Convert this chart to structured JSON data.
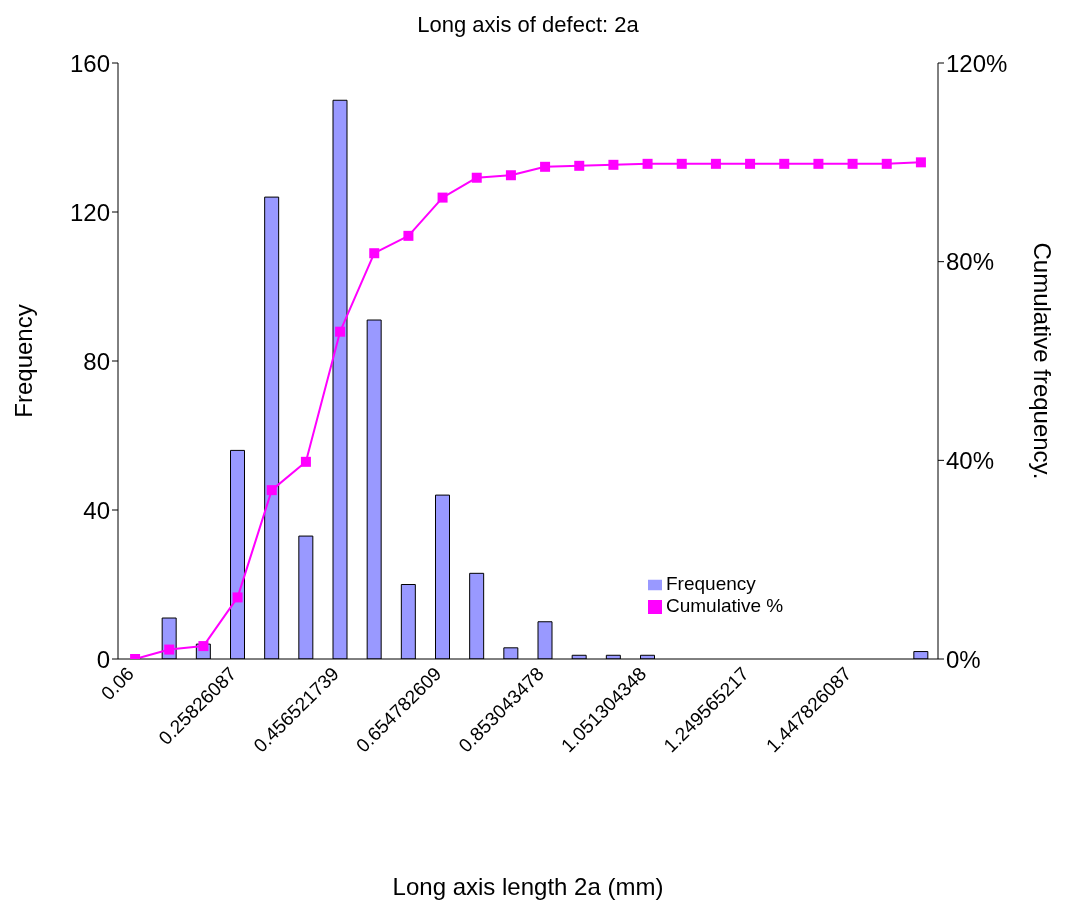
{
  "chart_data": {
    "type": "bar",
    "title": "Long axis of defect: 2a",
    "xlabel": "Long axis length 2a (mm)",
    "ylabel": "Frequency",
    "y2label": "Cumulative frequency.",
    "categories": [
      "0.06",
      null,
      null,
      "0.25826087",
      null,
      null,
      "0.456521739",
      null,
      null,
      "0.654782609",
      null,
      null,
      "0.853043478",
      null,
      null,
      "1.051304348",
      null,
      null,
      "1.249565217",
      null,
      null,
      "1.447826087",
      null,
      null
    ],
    "series": [
      {
        "name": "Frequency",
        "color": "#9999ff",
        "values": [
          0,
          11,
          4,
          56,
          124,
          33,
          150,
          91,
          20,
          44,
          23,
          3,
          10,
          1,
          1,
          1,
          0,
          0,
          0,
          0,
          0,
          0,
          0,
          2
        ]
      },
      {
        "name": "Cumulative %",
        "type": "line",
        "axis": "y2",
        "color": "#ff00ff",
        "values": [
          0,
          1.9,
          2.6,
          12.4,
          34,
          39.7,
          65.9,
          81.7,
          85.2,
          92.9,
          96.9,
          97.4,
          99.1,
          99.3,
          99.5,
          99.7,
          99.7,
          99.7,
          99.7,
          99.7,
          99.7,
          99.7,
          99.7,
          100
        ]
      }
    ],
    "ylim": [
      0,
      160
    ],
    "yticks": [
      0,
      40,
      80,
      120,
      160
    ],
    "y2lim": [
      0,
      120
    ],
    "y2ticks": [
      {
        "value": 0,
        "label": "0%"
      },
      {
        "value": 40,
        "label": "40%"
      },
      {
        "value": 80,
        "label": "80%"
      },
      {
        "value": 120,
        "label": "120%"
      }
    ],
    "grid": false,
    "legend": "bottom right",
    "marker": "square",
    "line_style": "solid"
  }
}
